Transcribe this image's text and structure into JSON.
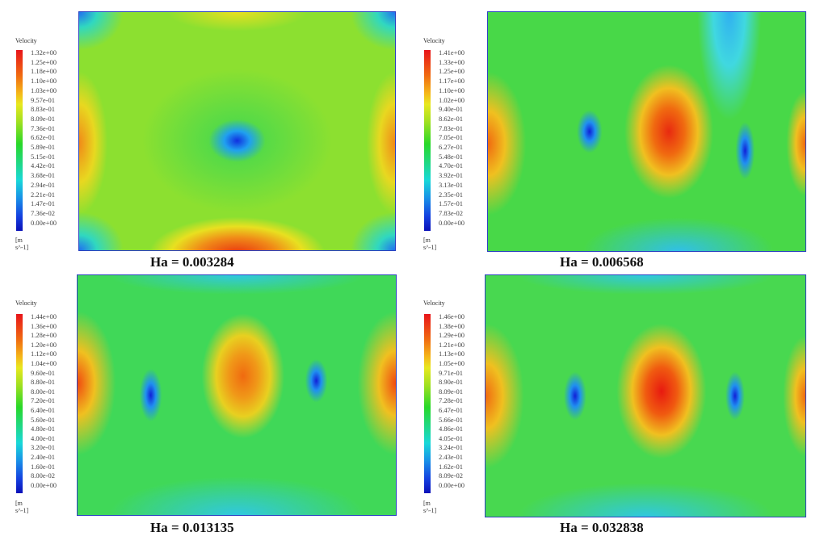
{
  "chart_data": [
    {
      "type": "heatmap",
      "title": "Ha = 0.003284",
      "colorbar_title": "Velocity",
      "colorbar_units": "[m s^-1]",
      "range": [
        0,
        1.32
      ],
      "ticks": [
        "1.32e+00",
        "1.25e+00",
        "1.18e+00",
        "1.10e+00",
        "1.03e+00",
        "9.57e-01",
        "8.83e-01",
        "8.09e-01",
        "7.36e-01",
        "6.62e-01",
        "5.89e-01",
        "5.15e-01",
        "4.42e-01",
        "3.68e-01",
        "2.94e-01",
        "2.21e-01",
        "1.47e-01",
        "7.36e-02",
        "0.00e+00"
      ]
    },
    {
      "type": "heatmap",
      "title": "Ha = 0.006568",
      "colorbar_title": "Velocity",
      "colorbar_units": "[m s^-1]",
      "range": [
        0,
        1.41
      ],
      "ticks": [
        "1.41e+00",
        "1.33e+00",
        "1.25e+00",
        "1.17e+00",
        "1.10e+00",
        "1.02e+00",
        "9.40e-01",
        "8.62e-01",
        "7.83e-01",
        "7.05e-01",
        "6.27e-01",
        "5.48e-01",
        "4.70e-01",
        "3.92e-01",
        "3.13e-01",
        "2.35e-01",
        "1.57e-01",
        "7.83e-02",
        "0.00e+00"
      ]
    },
    {
      "type": "heatmap",
      "title": "Ha = 0.013135",
      "colorbar_title": "Velocity",
      "colorbar_units": "[m s^-1]",
      "range": [
        0,
        1.44
      ],
      "ticks": [
        "1.44e+00",
        "1.36e+00",
        "1.28e+00",
        "1.20e+00",
        "1.12e+00",
        "1.04e+00",
        "9.60e-01",
        "8.80e-01",
        "8.00e-01",
        "7.20e-01",
        "6.40e-01",
        "5.60e-01",
        "4.80e-01",
        "4.00e-01",
        "3.20e-01",
        "2.40e-01",
        "1.60e-01",
        "8.00e-02",
        "0.00e+00"
      ]
    },
    {
      "type": "heatmap",
      "title": "Ha = 0.032838",
      "colorbar_title": "Velocity",
      "colorbar_units": "[m s^-1]",
      "range": [
        0,
        1.46
      ],
      "ticks": [
        "1.46e+00",
        "1.38e+00",
        "1.29e+00",
        "1.21e+00",
        "1.13e+00",
        "1.05e+00",
        "9.71e-01",
        "8.90e-01",
        "8.09e-01",
        "7.28e-01",
        "6.47e-01",
        "5.66e-01",
        "4.86e-01",
        "4.05e-01",
        "3.24e-01",
        "2.43e-01",
        "1.62e-01",
        "8.09e-02",
        "0.00e+00"
      ]
    }
  ]
}
